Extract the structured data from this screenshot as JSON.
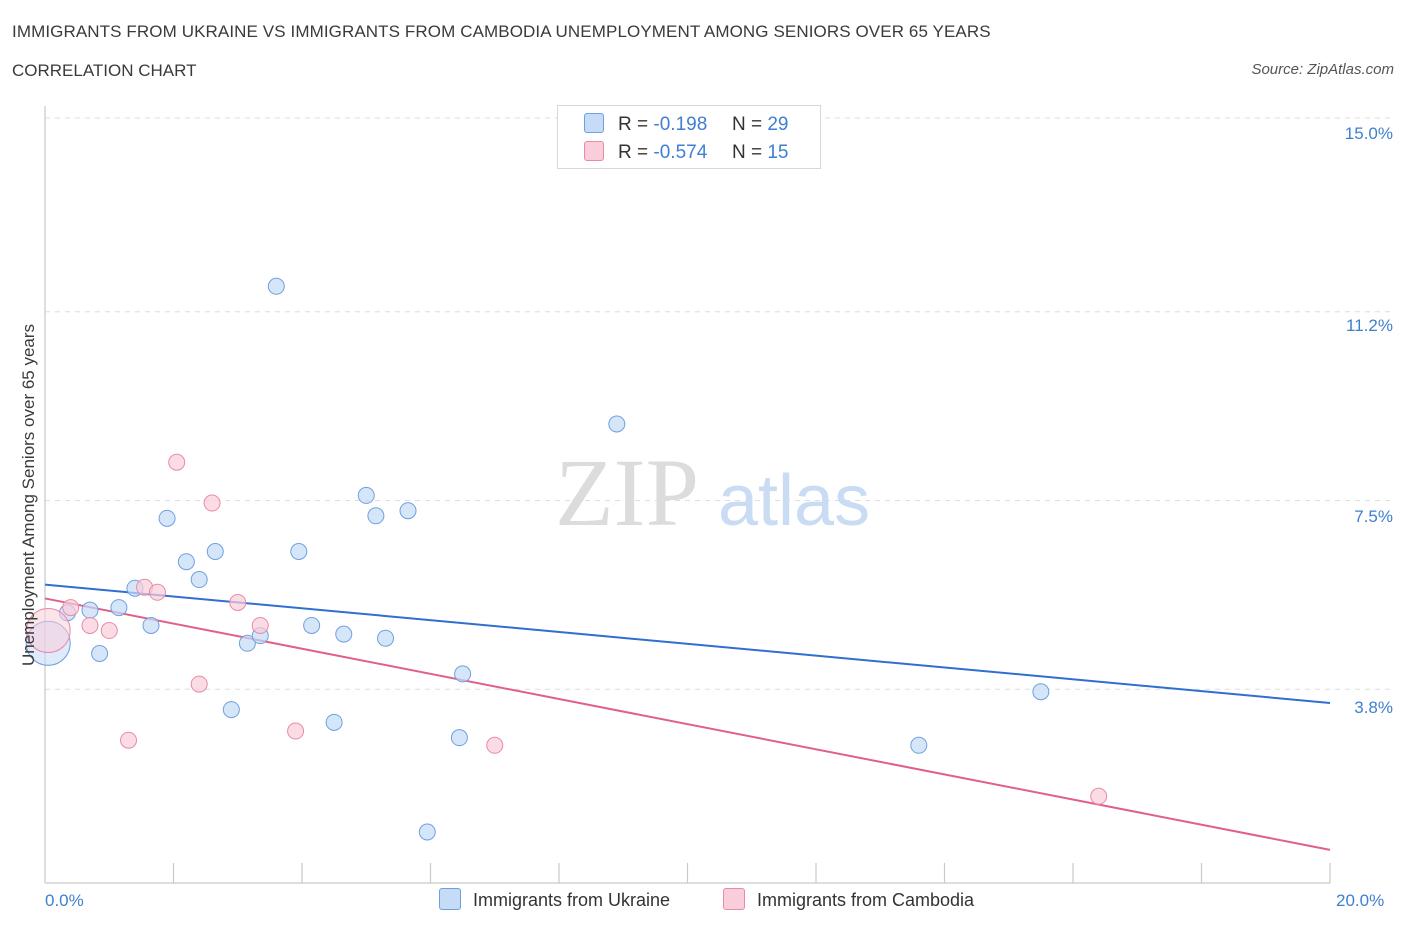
{
  "title": "IMMIGRANTS FROM UKRAINE VS IMMIGRANTS FROM CAMBODIA UNEMPLOYMENT AMONG SENIORS OVER 65 YEARS",
  "subtitle": "CORRELATION CHART",
  "source": "Source: ZipAtlas.com",
  "watermark": {
    "zip": "ZIP",
    "atlas": "atlas"
  },
  "legend_top": {
    "r_label": "R =",
    "n_label": "N =",
    "rows": [
      {
        "r": "-0.198",
        "n": "29",
        "color": "#b7d2f5"
      },
      {
        "r": "-0.574",
        "n": "15",
        "color": "#f8c6d6"
      }
    ]
  },
  "chart_data": {
    "type": "scatter",
    "title": "IMMIGRANTS FROM UKRAINE VS IMMIGRANTS FROM CAMBODIA UNEMPLOYMENT AMONG SENIORS OVER 65 YEARS",
    "xlabel": "",
    "ylabel": "Unemployment Among Seniors over 65 years",
    "xlim": [
      0,
      20
    ],
    "ylim": [
      0,
      15
    ],
    "x_tick_labels": [
      "0.0%",
      "20.0%"
    ],
    "y_ticks": [
      {
        "value": 3.8,
        "label": "3.8%"
      },
      {
        "value": 7.5,
        "label": "7.5%"
      },
      {
        "value": 11.2,
        "label": "11.2%"
      },
      {
        "value": 15.0,
        "label": "15.0%"
      }
    ],
    "grid": true,
    "series": [
      {
        "name": "Immigrants from Ukraine",
        "color": "#6ea0e0",
        "fill": "#c5dbf6",
        "line_color": "#2f6fcf",
        "trend": {
          "x": [
            0,
            20
          ],
          "y": [
            5.85,
            3.53
          ]
        },
        "points": [
          {
            "x": 0.05,
            "y": 4.7,
            "big": true
          },
          {
            "x": 0.35,
            "y": 5.3
          },
          {
            "x": 0.7,
            "y": 5.35
          },
          {
            "x": 0.85,
            "y": 4.5
          },
          {
            "x": 1.15,
            "y": 5.4
          },
          {
            "x": 1.4,
            "y": 5.78
          },
          {
            "x": 1.65,
            "y": 5.05
          },
          {
            "x": 1.9,
            "y": 7.15
          },
          {
            "x": 2.2,
            "y": 6.3
          },
          {
            "x": 2.4,
            "y": 5.95
          },
          {
            "x": 2.65,
            "y": 6.5
          },
          {
            "x": 2.9,
            "y": 3.4
          },
          {
            "x": 3.15,
            "y": 4.7
          },
          {
            "x": 3.35,
            "y": 4.85
          },
          {
            "x": 3.6,
            "y": 11.7
          },
          {
            "x": 3.95,
            "y": 6.5
          },
          {
            "x": 4.15,
            "y": 5.05
          },
          {
            "x": 4.5,
            "y": 3.15
          },
          {
            "x": 4.65,
            "y": 4.88
          },
          {
            "x": 5.0,
            "y": 7.6
          },
          {
            "x": 5.15,
            "y": 7.2
          },
          {
            "x": 5.3,
            "y": 4.8
          },
          {
            "x": 5.65,
            "y": 7.3
          },
          {
            "x": 5.95,
            "y": 1.0
          },
          {
            "x": 6.45,
            "y": 2.85
          },
          {
            "x": 6.5,
            "y": 4.1
          },
          {
            "x": 8.9,
            "y": 9.0
          },
          {
            "x": 13.6,
            "y": 2.7
          },
          {
            "x": 15.5,
            "y": 3.75
          }
        ]
      },
      {
        "name": "Immigrants from Cambodia",
        "color": "#e98aa8",
        "fill": "#f9cdda",
        "line_color": "#e0608a",
        "trend": {
          "x": [
            0,
            20
          ],
          "y": [
            5.58,
            0.65
          ]
        },
        "points": [
          {
            "x": 0.05,
            "y": 4.95,
            "big": true
          },
          {
            "x": 0.4,
            "y": 5.4
          },
          {
            "x": 0.7,
            "y": 5.05
          },
          {
            "x": 1.0,
            "y": 4.95
          },
          {
            "x": 1.3,
            "y": 2.8
          },
          {
            "x": 1.55,
            "y": 5.8
          },
          {
            "x": 1.75,
            "y": 5.7
          },
          {
            "x": 2.05,
            "y": 8.25
          },
          {
            "x": 2.4,
            "y": 3.9
          },
          {
            "x": 2.6,
            "y": 7.45
          },
          {
            "x": 3.0,
            "y": 5.5
          },
          {
            "x": 3.35,
            "y": 5.05
          },
          {
            "x": 3.9,
            "y": 2.98
          },
          {
            "x": 7.0,
            "y": 2.7
          },
          {
            "x": 16.4,
            "y": 1.7
          }
        ]
      }
    ]
  }
}
